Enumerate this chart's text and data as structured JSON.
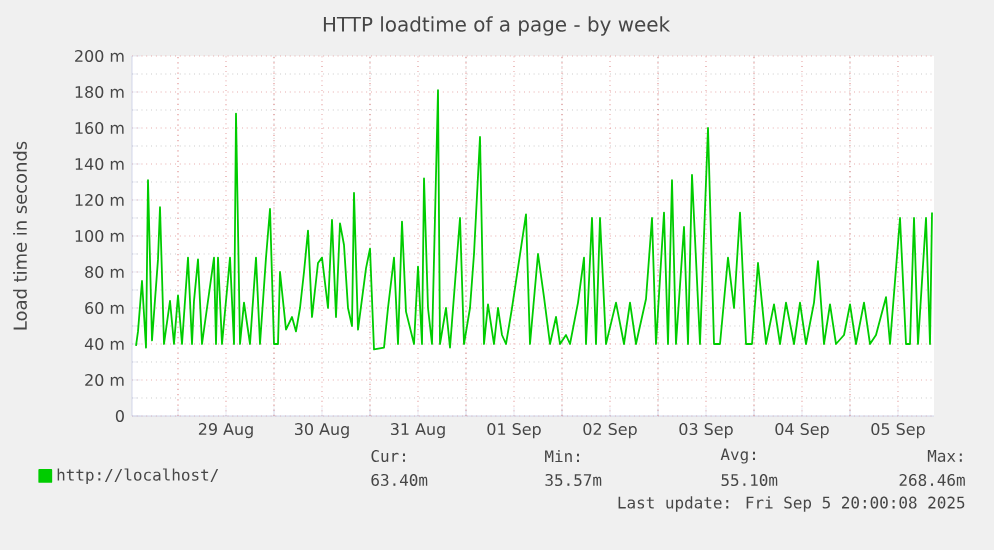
{
  "chart_data": {
    "type": "line",
    "title": "HTTP loadtime of a page - by week",
    "ylabel": "Load time in seconds",
    "legend": "bottom",
    "grid": true,
    "ylim": [
      0,
      200
    ],
    "yticks": [
      0,
      {
        "value": 20,
        "label": "20 m"
      },
      {
        "value": 40,
        "label": "40 m"
      },
      {
        "value": 60,
        "label": "60 m"
      },
      {
        "value": 80,
        "label": "80 m"
      },
      {
        "value": 100,
        "label": "100 m"
      },
      {
        "value": 120,
        "label": "120 m"
      },
      {
        "value": 140,
        "label": "140 m"
      },
      {
        "value": 160,
        "label": "160 m"
      },
      {
        "value": 180,
        "label": "180 m"
      },
      {
        "value": 200,
        "label": "200 m"
      }
    ],
    "xlim": [
      "2025-08-28T12:30",
      "2025-09-05T21:00"
    ],
    "xticks": [
      {
        "value": "2025-08-29T00:00",
        "label": null
      },
      {
        "value": "2025-08-29T12:00",
        "label": "29 Aug"
      },
      {
        "value": "2025-08-30T00:00",
        "label": null
      },
      {
        "value": "2025-08-30T12:00",
        "label": "30 Aug"
      },
      {
        "value": "2025-08-31T00:00",
        "label": null
      },
      {
        "value": "2025-08-31T12:00",
        "label": "31 Aug"
      },
      {
        "value": "2025-09-01T00:00",
        "label": null
      },
      {
        "value": "2025-09-01T12:00",
        "label": "01 Sep"
      },
      {
        "value": "2025-09-02T00:00",
        "label": null
      },
      {
        "value": "2025-09-02T12:00",
        "label": "02 Sep"
      },
      {
        "value": "2025-09-03T00:00",
        "label": null
      },
      {
        "value": "2025-09-03T12:00",
        "label": "03 Sep"
      },
      {
        "value": "2025-09-04T00:00",
        "label": null
      },
      {
        "value": "2025-09-04T12:00",
        "label": "04 Sep"
      },
      {
        "value": "2025-09-05T00:00",
        "label": null
      },
      {
        "value": "2025-09-05T12:00",
        "label": "05 Sep"
      }
    ],
    "annotations": [
      "Cur:",
      "Min:",
      "Avg:",
      "Max:",
      "63.40m",
      "35.57m",
      "55.10m",
      "268.46m",
      "Last update: Fri Sep  5 20:00:08 2025"
    ],
    "series": [
      {
        "name": "http://localhost/",
        "color": "#00cc00",
        "x": [
          "2025-08-28T13:30",
          "2025-08-28T14:00",
          "2025-08-28T15:00",
          "2025-08-28T16:00",
          "2025-08-28T16:30",
          "2025-08-28T17:30",
          "2025-08-28T19:00",
          "2025-08-28T19:30",
          "2025-08-28T20:30",
          "2025-08-28T22:00",
          "2025-08-28T23:00",
          "2025-08-29T00:00",
          "2025-08-29T01:00",
          "2025-08-29T02:30",
          "2025-08-29T03:30",
          "2025-08-29T04:00",
          "2025-08-29T05:00",
          "2025-08-29T06:00",
          "2025-08-29T09:00",
          "2025-08-29T09:30",
          "2025-08-29T10:00",
          "2025-08-29T11:00",
          "2025-08-29T13:00",
          "2025-08-29T14:00",
          "2025-08-29T14:30",
          "2025-08-29T15:30",
          "2025-08-29T16:30",
          "2025-08-29T18:00",
          "2025-08-29T19:30",
          "2025-08-29T20:30",
          "2025-08-29T22:00",
          "2025-08-29T23:00",
          "2025-08-30T00:00",
          "2025-08-30T01:00",
          "2025-08-30T01:30",
          "2025-08-30T03:00",
          "2025-08-30T04:30",
          "2025-08-30T05:30",
          "2025-08-30T06:30",
          "2025-08-30T07:30",
          "2025-08-30T08:30",
          "2025-08-30T09:30",
          "2025-08-30T11:00",
          "2025-08-30T12:00",
          "2025-08-30T13:30",
          "2025-08-30T14:30",
          "2025-08-30T15:30",
          "2025-08-30T16:30",
          "2025-08-30T17:30",
          "2025-08-30T18:30",
          "2025-08-30T19:30",
          "2025-08-30T20:00",
          "2025-08-30T21:00",
          "2025-08-30T23:00",
          "2025-08-31T00:00",
          "2025-08-31T01:00",
          "2025-08-31T03:30",
          "2025-08-31T04:30",
          "2025-08-31T06:00",
          "2025-08-31T07:00",
          "2025-08-31T08:00",
          "2025-08-31T09:00",
          "2025-08-31T11:00",
          "2025-08-31T12:00",
          "2025-08-31T13:00",
          "2025-08-31T13:30",
          "2025-08-31T14:30",
          "2025-08-31T15:30",
          "2025-08-31T17:00",
          "2025-08-31T17:30",
          "2025-08-31T19:00",
          "2025-08-31T20:00",
          "2025-08-31T22:30",
          "2025-08-31T23:30",
          "2025-09-01T01:00",
          "2025-09-01T02:00",
          "2025-09-01T03:30",
          "2025-09-01T04:30",
          "2025-09-01T05:30",
          "2025-09-01T07:00",
          "2025-09-01T08:00",
          "2025-09-01T09:00",
          "2025-09-01T10:00",
          "2025-09-01T11:30",
          "2025-09-01T15:00",
          "2025-09-01T16:00",
          "2025-09-01T18:00",
          "2025-09-01T19:30",
          "2025-09-01T21:00",
          "2025-09-01T22:30",
          "2025-09-01T23:30",
          "2025-09-02T01:00",
          "2025-09-02T02:00",
          "2025-09-02T04:00",
          "2025-09-02T05:30",
          "2025-09-02T06:00",
          "2025-09-02T07:30",
          "2025-09-02T08:30",
          "2025-09-02T09:30",
          "2025-09-02T11:00",
          "2025-09-02T13:30",
          "2025-09-02T15:30",
          "2025-09-02T17:00",
          "2025-09-02T18:30",
          "2025-09-02T21:00",
          "2025-09-02T22:30",
          "2025-09-02T23:30",
          "2025-09-03T01:30",
          "2025-09-03T02:30",
          "2025-09-03T03:30",
          "2025-09-03T04:30",
          "2025-09-03T06:30",
          "2025-09-03T07:30",
          "2025-09-03T08:30",
          "2025-09-03T10:30",
          "2025-09-03T12:30",
          "2025-09-03T14:00",
          "2025-09-03T15:30",
          "2025-09-03T17:30",
          "2025-09-03T19:00",
          "2025-09-03T20:30",
          "2025-09-03T22:00",
          "2025-09-03T23:30",
          "2025-09-04T01:00",
          "2025-09-04T03:00",
          "2025-09-04T05:00",
          "2025-09-04T06:30",
          "2025-09-04T08:00",
          "2025-09-04T10:00",
          "2025-09-04T11:30",
          "2025-09-04T13:00",
          "2025-09-04T15:00",
          "2025-09-04T16:00",
          "2025-09-04T17:30",
          "2025-09-04T19:00",
          "2025-09-04T20:30",
          "2025-09-04T22:30",
          "2025-09-05T00:00",
          "2025-09-05T01:30",
          "2025-09-05T03:30",
          "2025-09-05T05:00",
          "2025-09-05T06:30",
          "2025-09-05T09:00",
          "2025-09-05T10:00",
          "2025-09-05T12:30",
          "2025-09-05T14:00",
          "2025-09-05T15:00",
          "2025-09-05T16:00",
          "2025-09-05T17:00",
          "2025-09-05T19:00",
          "2025-09-05T20:00",
          "2025-09-05T20:30"
        ],
        "values": [
          39,
          47,
          75,
          38,
          131,
          42,
          87,
          116,
          40,
          64,
          40,
          67,
          40,
          88,
          40,
          64,
          87,
          40,
          88,
          40,
          88,
          40,
          88,
          40,
          168,
          40,
          63,
          40,
          88,
          40,
          88,
          115,
          40,
          40,
          80,
          48,
          55,
          47,
          60,
          80,
          103,
          55,
          85,
          88,
          60,
          109,
          55,
          107,
          95,
          60,
          50,
          124,
          48,
          82,
          93,
          37,
          38,
          60,
          88,
          40,
          108,
          58,
          40,
          83,
          40,
          132,
          60,
          40,
          181,
          40,
          60,
          38,
          110,
          40,
          60,
          90,
          155,
          40,
          62,
          40,
          60,
          45,
          40,
          60,
          112,
          40,
          90,
          66,
          40,
          55,
          40,
          45,
          40,
          63,
          88,
          40,
          110,
          40,
          110,
          40,
          63,
          40,
          63,
          40,
          65,
          110,
          40,
          113,
          40,
          131,
          40,
          105,
          40,
          134,
          40,
          160,
          40,
          40,
          88,
          60,
          113,
          40,
          40,
          85,
          40,
          62,
          40,
          63,
          40,
          63,
          40,
          63,
          86,
          40,
          62,
          40,
          45,
          62,
          40,
          63,
          40,
          45,
          66,
          40,
          110,
          40,
          40,
          110,
          40,
          110,
          40,
          113
        ]
      }
    ]
  }
}
